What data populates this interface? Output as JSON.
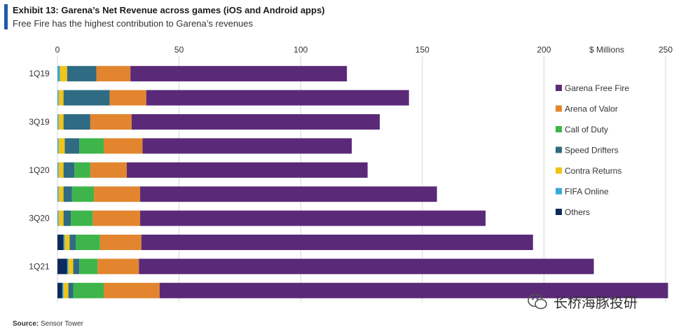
{
  "header": {
    "title": "Exhibit 13: Garena’s Net Revenue across games (iOS and Android apps)",
    "subtitle": "Free Fire has the highest contribution to Garena’s revenues"
  },
  "footer": {
    "source_label": "Source:",
    "source_value": "Sensor Tower"
  },
  "watermark": {
    "text": "长桥海豚投研",
    "icon": "wechat-icon"
  },
  "chart_data": {
    "type": "bar",
    "orientation": "horizontal",
    "stacked": true,
    "unit_label": "$ Millions",
    "xlim": [
      0,
      250
    ],
    "xticks": [
      "0",
      "50",
      "100",
      "150",
      "200",
      "250"
    ],
    "grid": true,
    "legend_position": "right",
    "categories": [
      "1Q19",
      "",
      "3Q19",
      "",
      "1Q20",
      "",
      "3Q20",
      "",
      "1Q21",
      ""
    ],
    "series": [
      {
        "name": "Others",
        "color": "#0d2a5c",
        "values": [
          0,
          0,
          0,
          0,
          0,
          0,
          0,
          2.5,
          4,
          2
        ]
      },
      {
        "name": "FIFA Online",
        "color": "#3aa7d9",
        "values": [
          1,
          0.5,
          0.5,
          0.5,
          0.5,
          0.5,
          0.5,
          0.5,
          0.5,
          0.5
        ]
      },
      {
        "name": "Contra Returns",
        "color": "#f0c419",
        "values": [
          3,
          2,
          2,
          2.5,
          2,
          2,
          2,
          2,
          2,
          2
        ]
      },
      {
        "name": "Speed Drifters",
        "color": "#2f6b82",
        "values": [
          12,
          19,
          11,
          6,
          4.5,
          3.5,
          3,
          2.5,
          2.5,
          2
        ]
      },
      {
        "name": "Call of Duty",
        "color": "#3db54a",
        "values": [
          0,
          0,
          0,
          10,
          6.5,
          9,
          9,
          10,
          7.5,
          12.5
        ]
      },
      {
        "name": "Arena of Valor",
        "color": "#e2852e",
        "values": [
          14,
          15,
          17,
          16,
          15,
          19,
          19.5,
          17,
          17,
          23
        ]
      },
      {
        "name": "Garena Free Fire",
        "color": "#5a2a78",
        "values": [
          89,
          108,
          102,
          86,
          99,
          122,
          142,
          161,
          187,
          209
        ]
      }
    ],
    "legend_order": [
      "Garena Free Fire",
      "Arena of Valor",
      "Call of Duty",
      "Speed Drifters",
      "Contra Returns",
      "FIFA Online",
      "Others"
    ]
  }
}
